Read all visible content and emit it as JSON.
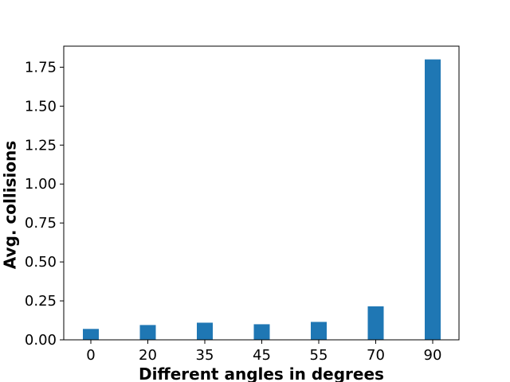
{
  "chart_data": {
    "type": "bar",
    "xlabel": "Different angles in degrees",
    "ylabel": "Avg. collisions",
    "categories": [
      "0",
      "20",
      "35",
      "45",
      "55",
      "70",
      "90"
    ],
    "values": [
      0.07,
      0.095,
      0.11,
      0.1,
      0.115,
      0.215,
      1.8
    ],
    "ylim": [
      0,
      1.885
    ],
    "yticks": [
      "0.00",
      "0.25",
      "0.50",
      "0.75",
      "1.00",
      "1.25",
      "1.50",
      "1.75"
    ],
    "bar_color": "#1f77b4",
    "grid": false,
    "legend": "none"
  }
}
